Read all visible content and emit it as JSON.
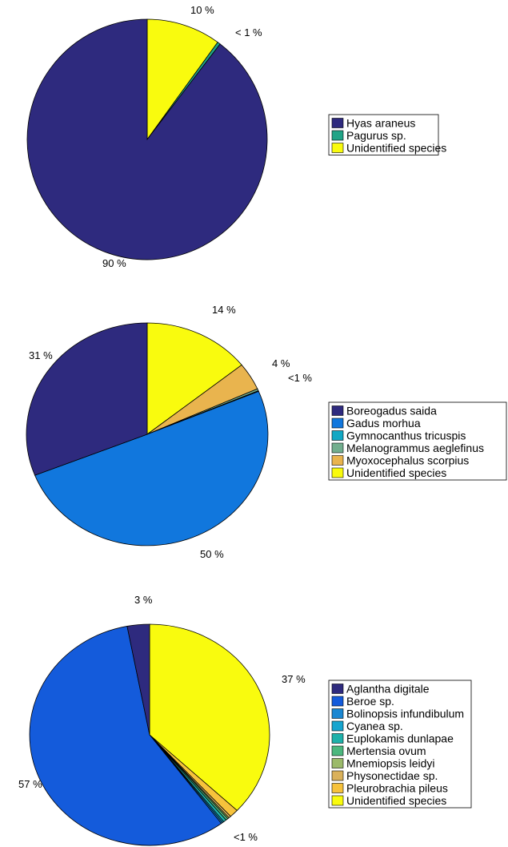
{
  "chart_data": [
    {
      "type": "pie",
      "title": "",
      "slices": [
        {
          "label": "Hyas araneus",
          "value": 89.6,
          "pct_label": "90 %",
          "color": "#2e2a7e"
        },
        {
          "label": "Pagurus sp.",
          "value": 0.4,
          "pct_label": "< 1 %",
          "color": "#21a487"
        },
        {
          "label": "Unidentified species",
          "value": 10.0,
          "pct_label": "10 %",
          "color": "#f9fb0e"
        }
      ],
      "legend": {
        "location": "right",
        "entries": [
          "Hyas araneus",
          "Pagurus sp.",
          "Unidentified species"
        ]
      }
    },
    {
      "type": "pie",
      "title": "",
      "slices": [
        {
          "label": "Boreogadus saida",
          "value": 31.0,
          "pct_label": "31 %",
          "color": "#2e2a7e"
        },
        {
          "label": "Gadus morhua",
          "value": 50.3,
          "pct_label": "50 %",
          "color": "#1177dd"
        },
        {
          "label": "Gymnocanthus tricuspis",
          "value": 0.1,
          "pct_label": "",
          "color": "#12a8c4"
        },
        {
          "label": "Melanogrammus aeglefinus",
          "value": 0.3,
          "pct_label": "<1 %",
          "color": "#72ae8e"
        },
        {
          "label": "Myoxocephalus scorpius",
          "value": 4.0,
          "pct_label": "4 %",
          "color": "#e9b44e"
        },
        {
          "label": "Unidentified species",
          "value": 14.3,
          "pct_label": "14 %",
          "color": "#f9fb0e"
        }
      ],
      "legend": {
        "location": "right",
        "entries": [
          "Boreogadus saida",
          "Gadus morhua",
          "Gymnocanthus tricuspis",
          "Melanogrammus aeglefinus",
          "Myoxocephalus scorpius",
          "Unidentified species"
        ]
      }
    },
    {
      "type": "pie",
      "title": "",
      "slices": [
        {
          "label": "Aglantha digitale",
          "value": 3.0,
          "pct_label": "3 %",
          "color": "#2e2a7e"
        },
        {
          "label": "Beroe sp.",
          "value": 57.2,
          "pct_label": "57 %",
          "color": "#145bdb"
        },
        {
          "label": "Bolinopsis infundibulum",
          "value": 0.2,
          "pct_label": "",
          "color": "#1a87d2"
        },
        {
          "label": "Cyanea sp.",
          "value": 0.2,
          "pct_label": "",
          "color": "#16a5cf"
        },
        {
          "label": "Euplokamis dunlapae",
          "value": 0.4,
          "pct_label": "<1 %",
          "color": "#1eb1aa"
        },
        {
          "label": "Mertensia ovum",
          "value": 0.3,
          "pct_label": "",
          "color": "#4cb77e"
        },
        {
          "label": "Mnemiopsis leidyi",
          "value": 0.2,
          "pct_label": "",
          "color": "#9bba6a"
        },
        {
          "label": "Physonectidae sp.",
          "value": 0.3,
          "pct_label": "",
          "color": "#dab15b"
        },
        {
          "label": "Pleurobrachia pileus",
          "value": 1.2,
          "pct_label": "",
          "color": "#f6c23c"
        },
        {
          "label": "Unidentified species",
          "value": 37.0,
          "pct_label": "37 %",
          "color": "#f9fb0e"
        }
      ],
      "legend": {
        "location": "right",
        "entries": [
          "Aglantha digitale",
          "Beroe sp.",
          "Bolinopsis infundibulum",
          "Cyanea sp.",
          "Euplokamis dunlapae",
          "Mertensia ovum",
          "Mnemiopsis leidyi",
          "Physonectidae sp.",
          "Pleurobrachia pileus",
          "Unidentified species"
        ]
      }
    }
  ]
}
